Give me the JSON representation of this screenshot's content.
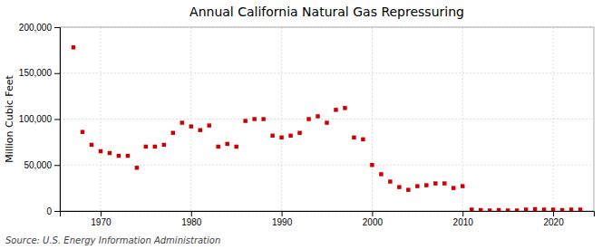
{
  "chart_data": {
    "type": "scatter",
    "title": "Annual California Natural Gas Repressuring",
    "ylabel": "Million Cubic Feet",
    "source": "Source: U.S. Energy Information Administration",
    "color": "#cc0000",
    "marker": "square",
    "grid": true,
    "x": [
      1967,
      1968,
      1969,
      1970,
      1971,
      1972,
      1973,
      1974,
      1975,
      1976,
      1977,
      1978,
      1979,
      1980,
      1981,
      1982,
      1983,
      1984,
      1985,
      1986,
      1987,
      1988,
      1989,
      1990,
      1991,
      1992,
      1993,
      1994,
      1995,
      1996,
      1997,
      1998,
      1999,
      2000,
      2001,
      2002,
      2003,
      2004,
      2005,
      2006,
      2007,
      2008,
      2009,
      2010,
      2011,
      2012,
      2013,
      2014,
      2015,
      2016,
      2017,
      2018,
      2019,
      2020,
      2021,
      2022,
      2023
    ],
    "values": [
      178000,
      86000,
      72000,
      65000,
      63000,
      60000,
      60000,
      47000,
      70000,
      70000,
      72000,
      85000,
      96000,
      92000,
      88000,
      93000,
      70000,
      73000,
      70000,
      98000,
      100000,
      100000,
      82000,
      80000,
      82000,
      85000,
      100000,
      103000,
      96000,
      110000,
      112000,
      80000,
      78000,
      50000,
      40000,
      32000,
      26000,
      23000,
      27000,
      28000,
      30000,
      30000,
      25000,
      27000,
      1500,
      1000,
      500,
      1000,
      500,
      500,
      1500,
      2000,
      1500,
      1500,
      1000,
      1500,
      1500
    ],
    "xlim": [
      1965.5,
      2024.5
    ],
    "xticks": [
      1970,
      1980,
      1990,
      2000,
      2010,
      2020
    ],
    "ylim": [
      0,
      200000
    ],
    "yticks": [
      0,
      {
        "value": 50000,
        "label": "50,000"
      },
      {
        "value": 100000,
        "label": "100,000"
      },
      {
        "value": 150000,
        "label": "150,000"
      },
      {
        "value": 200000,
        "label": "200,000"
      }
    ]
  }
}
